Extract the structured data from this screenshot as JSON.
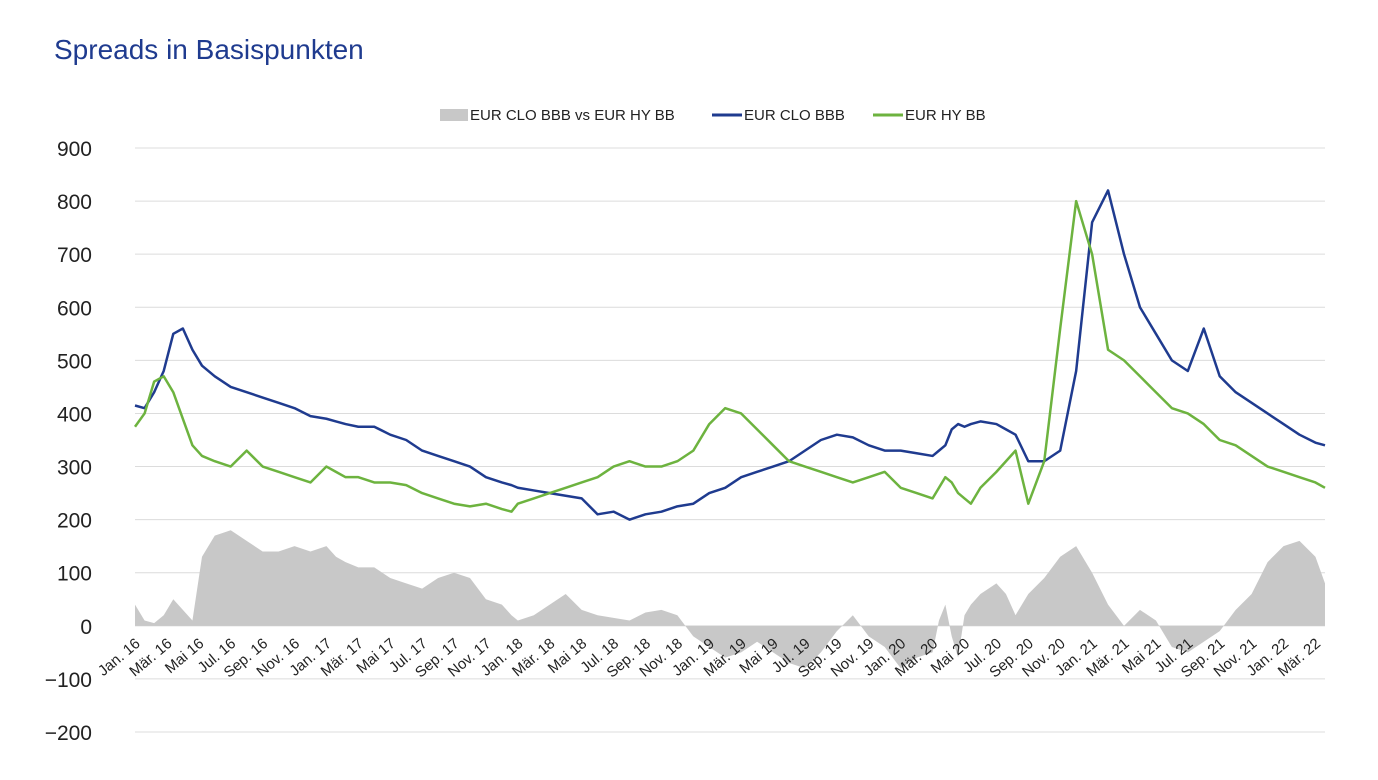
{
  "chart_data": {
    "type": "line",
    "title": "Spreads in Basispunkten",
    "xlabel": "",
    "ylabel": "",
    "ylim": [
      -200,
      900
    ],
    "yticks": [
      900,
      800,
      700,
      600,
      500,
      400,
      300,
      200,
      100,
      0,
      -100,
      -200
    ],
    "ytick_labels": [
      "900",
      "800",
      "700",
      "600",
      "500",
      "400",
      "300",
      "200",
      "100",
      "0",
      "−100",
      "−200"
    ],
    "x_tick_labels": [
      "Jan. 16",
      "Mär. 16",
      "Mai 16",
      "Jul. 16",
      "Sep. 16",
      "Nov. 16",
      "Jan. 17",
      "Mär. 17",
      "Mai 17",
      "Jul. 17",
      "Sep. 17",
      "Nov. 17",
      "Jan. 18",
      "Mär. 18",
      "Mai 18",
      "Jul. 18",
      "Sep. 18",
      "Nov. 18",
      "Jan. 19",
      "Mär. 19",
      "Mai 19",
      "Jul. 19",
      "Sep. 19",
      "Nov. 19",
      "Jan. 20",
      "Mär. 20",
      "Mai 20",
      "Jul. 20",
      "Sep. 20",
      "Nov. 20",
      "Jan. 21",
      "Mär. 21",
      "Mai 21",
      "Jul. 21",
      "Sep. 21",
      "Nov. 21",
      "Jan. 22",
      "Mär. 22"
    ],
    "grid": true,
    "legend_position": "top-center",
    "series": [
      {
        "name": "EUR CLO BBB vs EUR HY BB",
        "kind": "area",
        "color": "#c8c8c8",
        "x": [
          0,
          0.3,
          0.6,
          0.9,
          1.2,
          1.5,
          1.8,
          2.1,
          2.5,
          3,
          3.5,
          4,
          4.5,
          5,
          5.5,
          6,
          6.3,
          6.6,
          7,
          7.5,
          8,
          8.5,
          9,
          9.5,
          10,
          10.5,
          11,
          11.5,
          11.8,
          12,
          12.5,
          13,
          13.5,
          14,
          14.5,
          15,
          15.5,
          16,
          16.5,
          17,
          17.5,
          18,
          18.5,
          19,
          19.5,
          20,
          20.5,
          21,
          21.5,
          22,
          22.5,
          23,
          23.5,
          24,
          24.5,
          25,
          25.2,
          25.4,
          25.6,
          25.8,
          26,
          26.2,
          26.5,
          27,
          27.3,
          27.6,
          28,
          28.5,
          29,
          29.5,
          30,
          30.5,
          31,
          31.5,
          32,
          32.5,
          33,
          33.5,
          34,
          34.5,
          35,
          35.5,
          36,
          36.5,
          37,
          37.3
        ],
        "values": [
          40,
          10,
          5,
          20,
          50,
          30,
          10,
          130,
          170,
          180,
          160,
          140,
          140,
          150,
          140,
          150,
          130,
          120,
          110,
          110,
          90,
          80,
          70,
          90,
          100,
          90,
          50,
          40,
          20,
          10,
          20,
          40,
          60,
          30,
          20,
          15,
          10,
          25,
          30,
          20,
          -20,
          -40,
          -60,
          -50,
          -30,
          -50,
          -70,
          -80,
          -50,
          -10,
          20,
          -20,
          -40,
          -80,
          -60,
          -50,
          10,
          40,
          -20,
          -60,
          20,
          40,
          60,
          80,
          60,
          20,
          60,
          90,
          130,
          150,
          100,
          40,
          0,
          30,
          10,
          -40,
          -50,
          -30,
          -10,
          30,
          60,
          120,
          150,
          160,
          130,
          80
        ]
      },
      {
        "name": "EUR CLO BBB",
        "kind": "line",
        "color": "#1f3b8f",
        "x": [
          0,
          0.3,
          0.6,
          0.9,
          1.2,
          1.5,
          1.8,
          2.1,
          2.5,
          3,
          3.5,
          4,
          4.5,
          5,
          5.5,
          6,
          6.3,
          6.6,
          7,
          7.5,
          8,
          8.5,
          9,
          9.5,
          10,
          10.5,
          11,
          11.5,
          11.8,
          12,
          12.5,
          13,
          13.5,
          14,
          14.5,
          15,
          15.5,
          16,
          16.5,
          17,
          17.5,
          18,
          18.5,
          19,
          19.5,
          20,
          20.5,
          21,
          21.5,
          22,
          22.5,
          23,
          23.5,
          24,
          24.5,
          25,
          25.2,
          25.4,
          25.6,
          25.8,
          26,
          26.2,
          26.5,
          27,
          27.3,
          27.6,
          28,
          28.5,
          29,
          29.5,
          30,
          30.5,
          31,
          31.5,
          32,
          32.5,
          33,
          33.5,
          34,
          34.5,
          35,
          35.5,
          36,
          36.5,
          37,
          37.3
        ],
        "values": [
          415,
          410,
          440,
          480,
          550,
          560,
          520,
          490,
          470,
          450,
          440,
          430,
          420,
          410,
          395,
          390,
          385,
          380,
          375,
          375,
          360,
          350,
          330,
          320,
          310,
          300,
          280,
          270,
          265,
          260,
          255,
          250,
          245,
          240,
          210,
          215,
          200,
          210,
          215,
          225,
          230,
          250,
          260,
          280,
          290,
          300,
          310,
          330,
          350,
          360,
          355,
          340,
          330,
          330,
          325,
          320,
          330,
          340,
          370,
          380,
          375,
          380,
          385,
          380,
          370,
          360,
          310,
          310,
          330,
          480,
          760,
          820,
          700,
          600,
          550,
          500,
          480,
          560,
          470,
          440,
          420,
          400,
          380,
          360,
          345,
          340
        ]
      },
      {
        "name": "EUR HY BB",
        "kind": "line",
        "color": "#6db33f",
        "x": [
          0,
          0.3,
          0.6,
          0.9,
          1.2,
          1.5,
          1.8,
          2.1,
          2.5,
          3,
          3.5,
          4,
          4.5,
          5,
          5.5,
          6,
          6.3,
          6.6,
          7,
          7.5,
          8,
          8.5,
          9,
          9.5,
          10,
          10.5,
          11,
          11.5,
          11.8,
          12,
          12.5,
          13,
          13.5,
          14,
          14.5,
          15,
          15.5,
          16,
          16.5,
          17,
          17.5,
          18,
          18.5,
          19,
          19.5,
          20,
          20.5,
          21,
          21.5,
          22,
          22.5,
          23,
          23.5,
          24,
          24.5,
          25,
          25.2,
          25.4,
          25.6,
          25.8,
          26,
          26.2,
          26.5,
          27,
          27.3,
          27.6,
          28,
          28.5,
          29,
          29.5,
          30,
          30.5,
          31,
          31.5,
          32,
          32.5,
          33,
          33.5,
          34,
          34.5,
          35,
          35.5,
          36,
          36.5,
          37,
          37.3
        ],
        "values": [
          375,
          400,
          460,
          470,
          440,
          390,
          340,
          320,
          310,
          300,
          330,
          300,
          290,
          280,
          270,
          300,
          290,
          280,
          280,
          270,
          270,
          265,
          250,
          240,
          230,
          225,
          230,
          220,
          215,
          230,
          240,
          250,
          260,
          270,
          280,
          300,
          310,
          300,
          300,
          310,
          330,
          380,
          410,
          400,
          370,
          340,
          310,
          300,
          290,
          280,
          270,
          280,
          290,
          260,
          250,
          240,
          260,
          280,
          270,
          250,
          240,
          230,
          260,
          290,
          310,
          330,
          230,
          310,
          560,
          800,
          700,
          520,
          500,
          470,
          440,
          410,
          400,
          380,
          350,
          340,
          320,
          300,
          290,
          280,
          270,
          260
        ]
      }
    ]
  }
}
